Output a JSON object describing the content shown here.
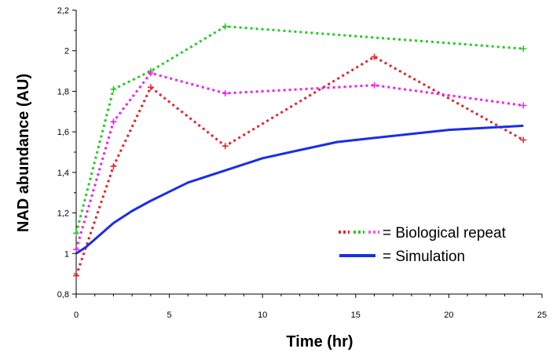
{
  "chart_data": {
    "type": "line",
    "xlabel": "Time (hr)",
    "ylabel": "NAD abundance (AU)",
    "xlim": [
      0,
      25
    ],
    "ylim": [
      0.8,
      2.2
    ],
    "x_ticks": [
      "0",
      "5",
      "10",
      "15",
      "20",
      "25"
    ],
    "y_ticks": [
      "0,8",
      "1",
      "1,2",
      "1,4",
      "1,6",
      "1,8",
      "2",
      "2,2"
    ],
    "grid": false,
    "legend_position": "lower-right",
    "legend": [
      {
        "label": "= Biological repeat",
        "style": "dotted",
        "colors": [
          "#e8222a",
          "#22cc22",
          "#f060f0"
        ]
      },
      {
        "label": "= Simulation",
        "style": "solid",
        "colors": [
          "#1a2ee6"
        ]
      }
    ],
    "series": [
      {
        "style": "dotted",
        "color": "#e8222a",
        "x": [
          0,
          2,
          4,
          8,
          16,
          24
        ],
        "y": [
          0.89,
          1.43,
          1.82,
          1.53,
          1.97,
          1.56
        ]
      },
      {
        "style": "dotted",
        "color": "#22cc22",
        "x": [
          0,
          2,
          4,
          8,
          24
        ],
        "y": [
          1.1,
          1.81,
          1.9,
          2.12,
          2.01
        ]
      },
      {
        "style": "dotted",
        "color": "#ee22ee",
        "x": [
          0,
          2,
          4,
          8,
          16,
          24
        ],
        "y": [
          1.02,
          1.65,
          1.89,
          1.79,
          1.83,
          1.73
        ]
      },
      {
        "style": "solid",
        "color": "#1a2ee6",
        "x": [
          0,
          0.5,
          1,
          2,
          3,
          4,
          6,
          8,
          10,
          12,
          14,
          16,
          18,
          20,
          22,
          24
        ],
        "y": [
          1.0,
          1.03,
          1.07,
          1.15,
          1.21,
          1.26,
          1.35,
          1.41,
          1.47,
          1.51,
          1.55,
          1.57,
          1.59,
          1.61,
          1.62,
          1.63
        ]
      }
    ]
  }
}
